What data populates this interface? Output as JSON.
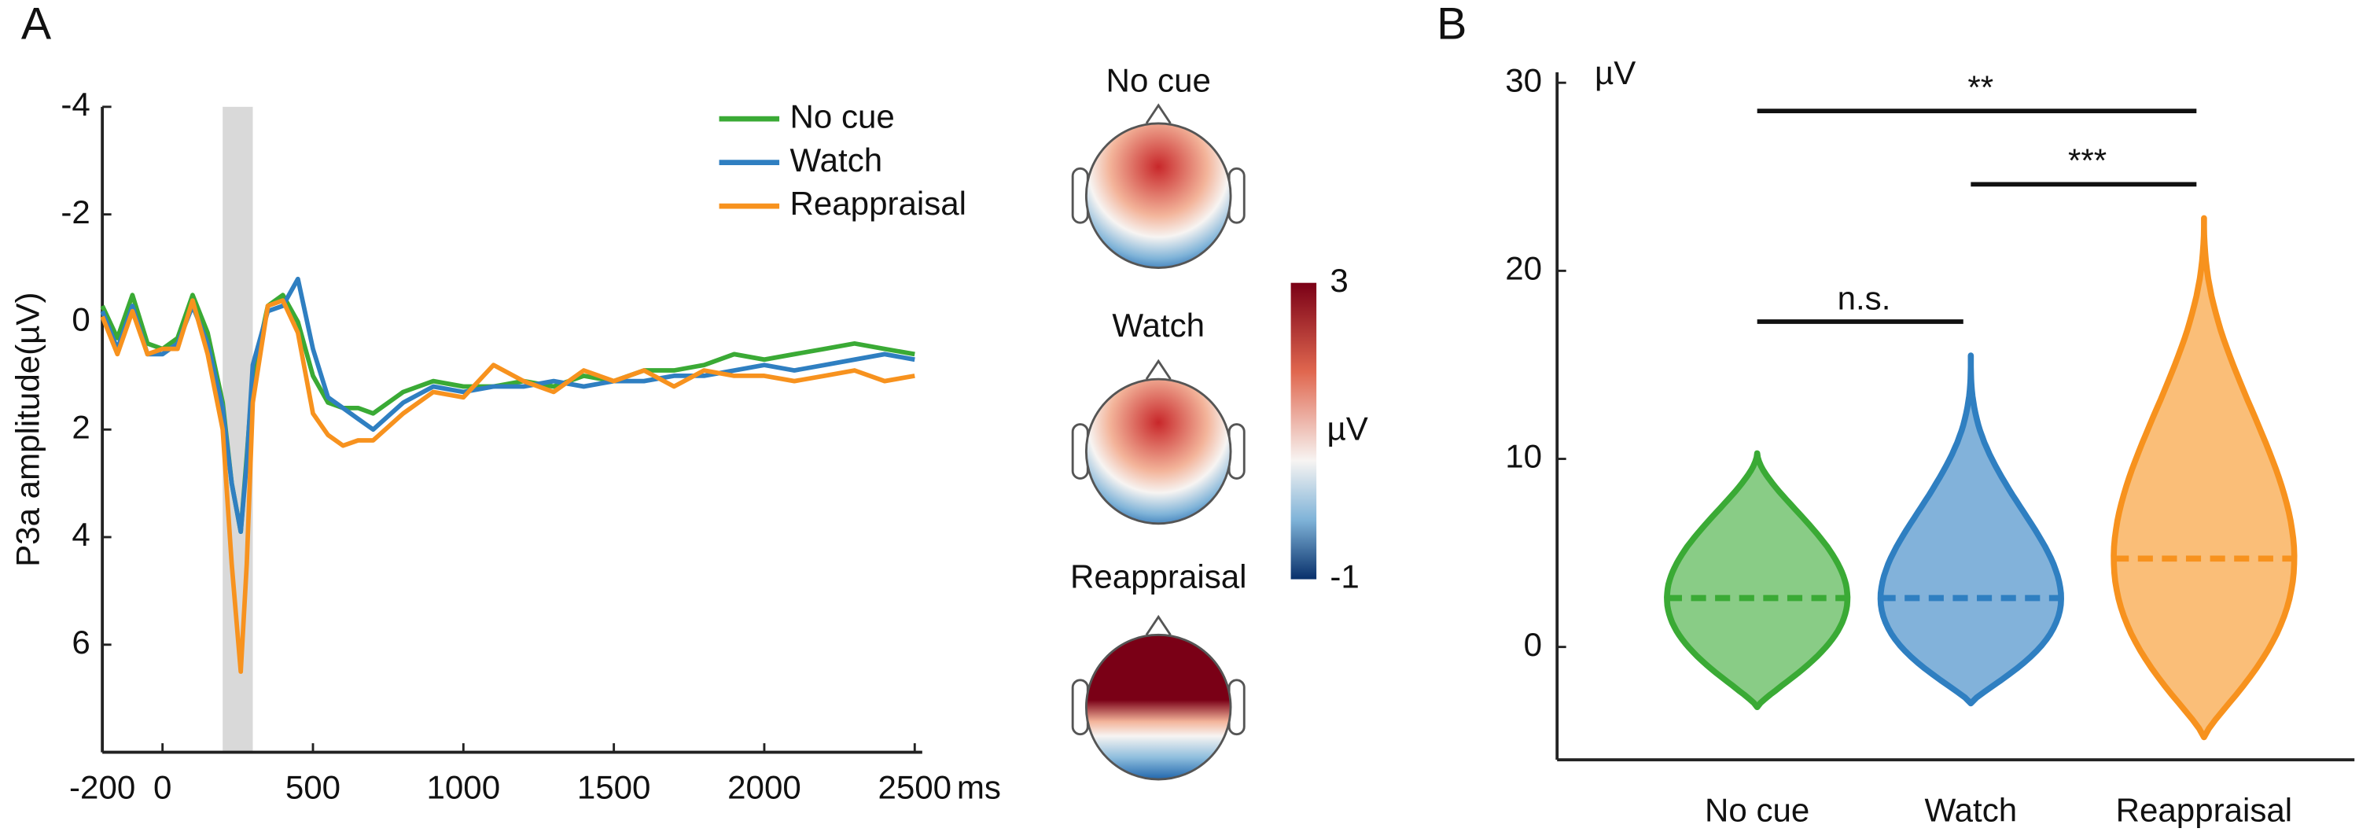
{
  "panels": [
    "A",
    "B"
  ],
  "chart_data": [
    {
      "type": "line",
      "ylabel": "P3a amplitude(µV)",
      "xunit": "ms",
      "y_inverted": true,
      "xlim": [
        -200,
        2500
      ],
      "xticks": [
        -200,
        0,
        500,
        1000,
        1500,
        2000,
        2500
      ],
      "ylim": [
        -4,
        8
      ],
      "yticks": [
        -4,
        -2,
        0,
        2,
        4,
        6
      ],
      "shade": [
        200,
        300
      ],
      "x": [
        -200,
        -150,
        -100,
        -50,
        0,
        50,
        100,
        150,
        200,
        230,
        260,
        280,
        300,
        350,
        400,
        450,
        500,
        550,
        600,
        650,
        700,
        800,
        900,
        1000,
        1100,
        1200,
        1300,
        1400,
        1500,
        1600,
        1700,
        1800,
        1900,
        2000,
        2100,
        2200,
        2300,
        2400,
        2500
      ],
      "series": [
        {
          "name": "No cue",
          "color": "#3aaa35",
          "values": [
            -0.3,
            0.3,
            -0.5,
            0.4,
            0.5,
            0.3,
            -0.5,
            0.2,
            1.5,
            3.0,
            3.9,
            2.5,
            1.0,
            -0.3,
            -0.5,
            0,
            1.0,
            1.5,
            1.6,
            1.6,
            1.7,
            1.3,
            1.1,
            1.2,
            1.2,
            1.1,
            1.2,
            1.0,
            1.1,
            0.9,
            0.9,
            0.8,
            0.6,
            0.7,
            0.6,
            0.5,
            0.4,
            0.5,
            0.6
          ]
        },
        {
          "name": "Watch",
          "color": "#2f7fc1",
          "values": [
            -0.2,
            0.5,
            -0.3,
            0.6,
            0.6,
            0.4,
            -0.3,
            0.4,
            1.6,
            3.0,
            3.9,
            2.6,
            0.8,
            -0.2,
            -0.3,
            -0.8,
            0.5,
            1.4,
            1.6,
            1.8,
            2.0,
            1.5,
            1.2,
            1.3,
            1.2,
            1.2,
            1.1,
            1.2,
            1.1,
            1.1,
            1.0,
            1.0,
            0.9,
            0.8,
            0.9,
            0.8,
            0.7,
            0.6,
            0.7
          ]
        },
        {
          "name": "Reappraisal",
          "color": "#f7921e",
          "values": [
            -0.1,
            0.6,
            -0.2,
            0.6,
            0.5,
            0.5,
            -0.4,
            0.6,
            2.0,
            4.5,
            6.5,
            4.5,
            1.5,
            -0.3,
            -0.4,
            0.2,
            1.7,
            2.1,
            2.3,
            2.2,
            2.2,
            1.7,
            1.3,
            1.4,
            0.8,
            1.1,
            1.3,
            0.9,
            1.1,
            0.9,
            1.2,
            0.9,
            1.0,
            1.0,
            1.1,
            1.0,
            0.9,
            1.1,
            1.0
          ]
        }
      ]
    },
    {
      "type": "topomap",
      "titles": [
        "No cue",
        "Watch",
        "Reappraisal"
      ],
      "colorbar": {
        "label": "µV",
        "lim": [
          -1,
          3
        ],
        "ticks": [
          3,
          -1
        ]
      }
    },
    {
      "type": "violin",
      "yunit": "µV",
      "ylim": [
        -6,
        30
      ],
      "yticks": [
        0,
        10,
        20,
        30
      ],
      "categories": [
        "No cue",
        "Watch",
        "Reappraisal"
      ],
      "colors": [
        "#3aaa35",
        "#2f7fc1",
        "#f7921e"
      ],
      "medians": [
        2.6,
        2.6,
        4.7
      ],
      "ranges": [
        [
          -3.2,
          10.3
        ],
        [
          -3.0,
          15.5
        ],
        [
          -4.8,
          22.8
        ]
      ],
      "annotations": [
        {
          "label": "**",
          "from": 0,
          "to": 2,
          "y": 28.5
        },
        {
          "label": "***",
          "from": 1,
          "to": 2,
          "y": 24.6
        },
        {
          "label": "n.s.",
          "from": 0,
          "to": 1,
          "y": 17.3
        }
      ]
    }
  ]
}
